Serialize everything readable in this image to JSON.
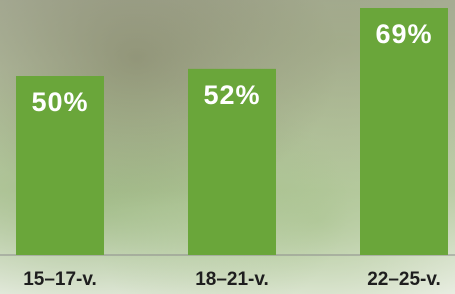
{
  "chart_data": {
    "type": "bar",
    "categories": [
      "15–17-v.",
      "18–21-v.",
      "22–25-v."
    ],
    "values": [
      50,
      52,
      69
    ],
    "value_labels": [
      "50%",
      "52%",
      "69%"
    ],
    "color": "#6aa63a"
  }
}
